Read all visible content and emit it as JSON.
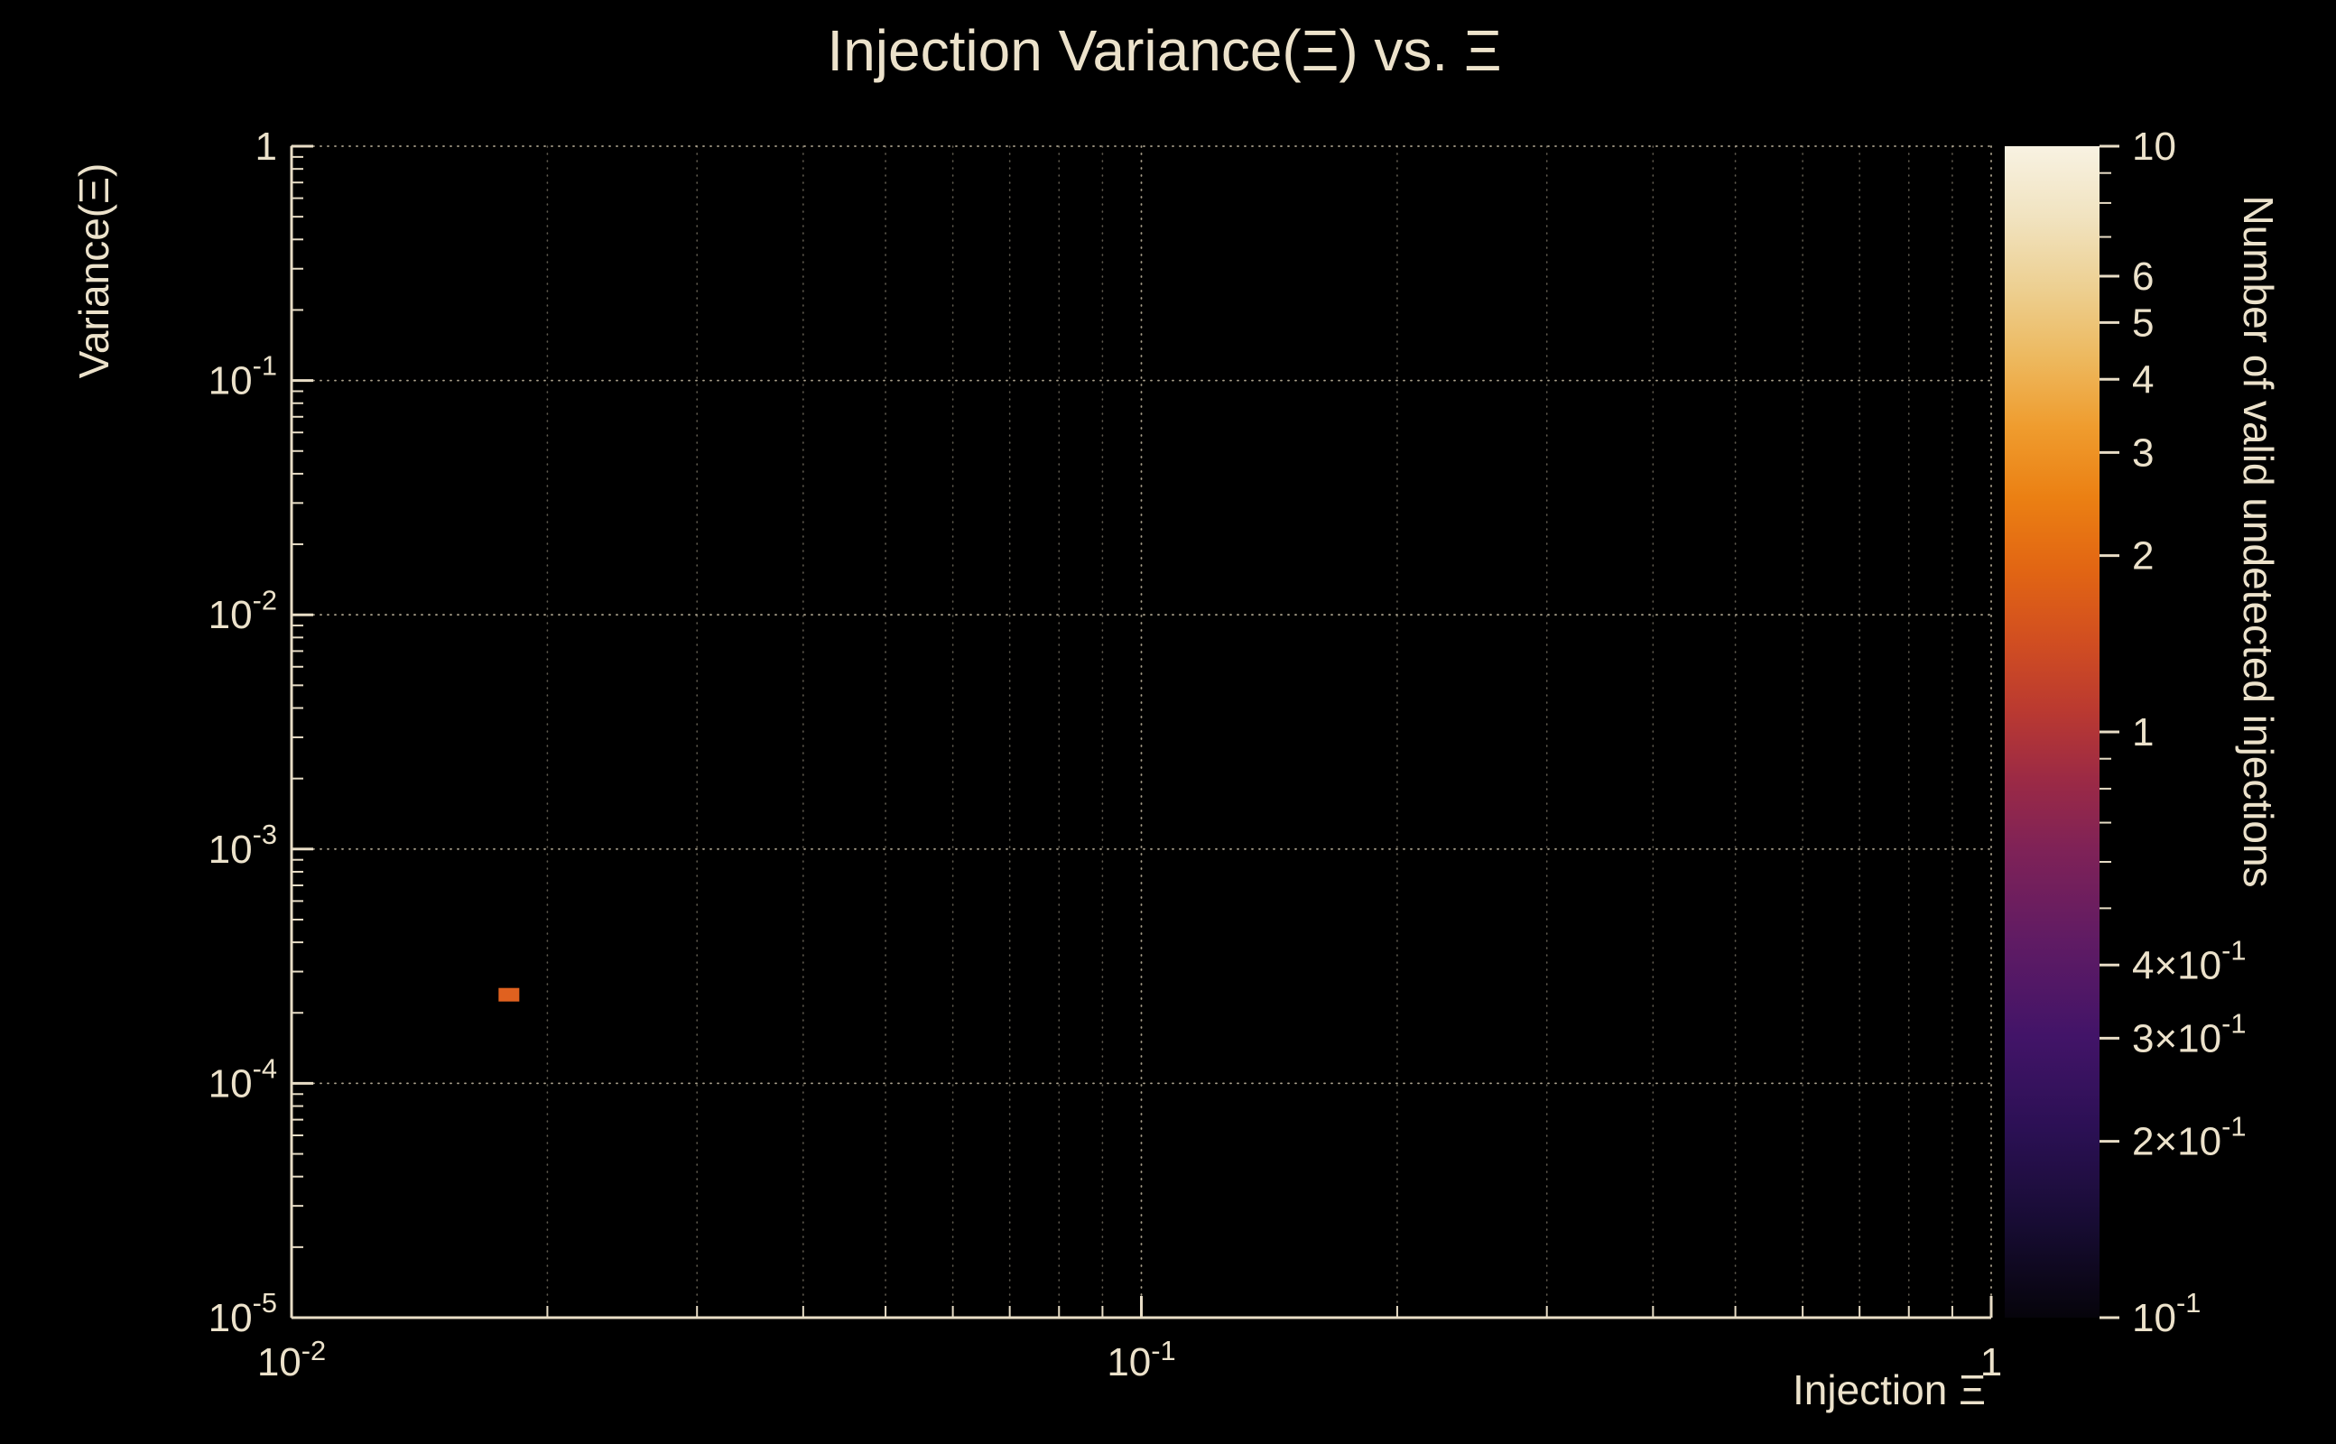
{
  "page": {
    "background": "#000000",
    "text_color": "#ece2cb",
    "grid_color": "#d8ccb2",
    "axis_color": "#e8ddc6"
  },
  "chart_data": {
    "type": "heatmap",
    "title": "Injection Variance(Ξ) vs. Ξ",
    "xlabel": "Injection Ξ",
    "ylabel": "Variance(Ξ)",
    "colorbar_label": "Number of valid undetected injections",
    "x_scale": "log",
    "y_scale": "log",
    "z_scale": "log",
    "xlim": [
      0.01,
      1
    ],
    "ylim": [
      1e-05,
      1
    ],
    "zlim": [
      0.1,
      10
    ],
    "grid": true,
    "legend": "colorbar-right",
    "x_ticks": [
      {
        "value": 0.01,
        "label": "10^{-2}"
      },
      {
        "value": 0.1,
        "label": "10^{-1}"
      },
      {
        "value": 1,
        "label": "1"
      }
    ],
    "y_ticks": [
      {
        "value": 1,
        "label": "1"
      },
      {
        "value": 0.1,
        "label": "10^{-1}"
      },
      {
        "value": 0.01,
        "label": "10^{-2}"
      },
      {
        "value": 0.001,
        "label": "10^{-3}"
      },
      {
        "value": 0.0001,
        "label": "10^{-4}"
      },
      {
        "value": 1e-05,
        "label": "10^{-5}"
      }
    ],
    "z_ticks": [
      {
        "value": 10,
        "label": "10"
      },
      {
        "value": 6,
        "label": "6"
      },
      {
        "value": 5,
        "label": "5"
      },
      {
        "value": 4,
        "label": "4"
      },
      {
        "value": 3,
        "label": "3"
      },
      {
        "value": 2,
        "label": "2"
      },
      {
        "value": 1,
        "label": "1"
      },
      {
        "value": 0.4,
        "label": "4×10^{-1}"
      },
      {
        "value": 0.3,
        "label": "3×10^{-1}"
      },
      {
        "value": 0.2,
        "label": "2×10^{-1}"
      },
      {
        "value": 0.1,
        "label": "10^{-1}"
      }
    ],
    "bins": [
      {
        "x": 0.018,
        "y": 0.00024,
        "count": 1,
        "color": "#e0611f"
      }
    ],
    "colormap_stops": [
      [
        0.0,
        "#06040b"
      ],
      [
        0.08,
        "#170c33"
      ],
      [
        0.16,
        "#2b1054"
      ],
      [
        0.24,
        "#421468"
      ],
      [
        0.32,
        "#5f1b64"
      ],
      [
        0.4,
        "#7f2257"
      ],
      [
        0.46,
        "#9c2a45"
      ],
      [
        0.52,
        "#bb3a30"
      ],
      [
        0.58,
        "#d24f20"
      ],
      [
        0.64,
        "#e26613"
      ],
      [
        0.7,
        "#eb8013"
      ],
      [
        0.76,
        "#ef9c2e"
      ],
      [
        0.82,
        "#edb95f"
      ],
      [
        0.88,
        "#edd092"
      ],
      [
        0.94,
        "#f1e3c0"
      ],
      [
        1.0,
        "#f8f2e2"
      ]
    ]
  }
}
